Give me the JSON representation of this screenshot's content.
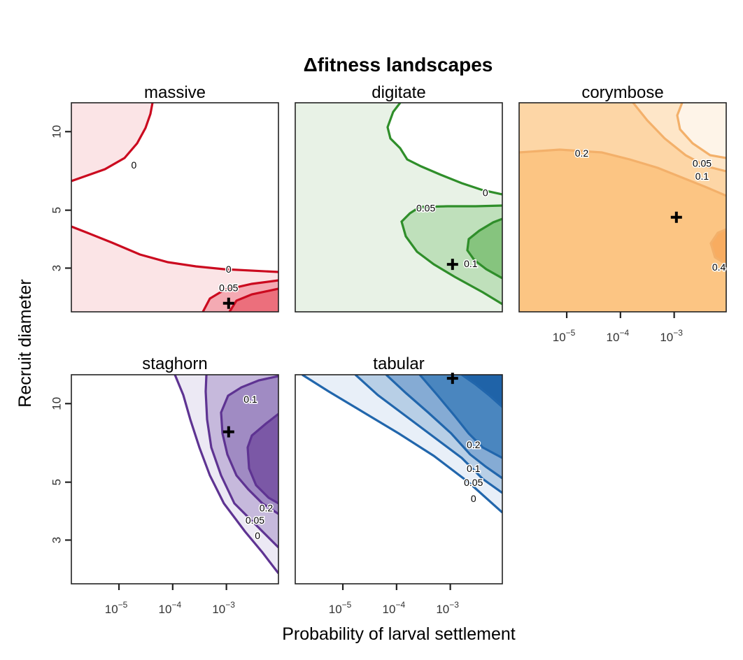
{
  "chart_data": {
    "type": "contour",
    "title": "Δfitness landscapes",
    "xlabel": "Probability of larval settlement",
    "ylabel": "Recruit diameter",
    "xscale": "log",
    "yscale": "log",
    "xticks": [
      {
        "value": 1e-05,
        "label": "10",
        "exp": "−5"
      },
      {
        "value": 0.0001,
        "label": "10",
        "exp": "−4"
      },
      {
        "value": 0.001,
        "label": "10",
        "exp": "−3"
      }
    ],
    "yticks": [
      3,
      5,
      10
    ],
    "panels": [
      {
        "name": "massive",
        "color": "#cb0a1f",
        "fills": [
          "#fbe4e6",
          "#ffffff",
          "#f4aab3",
          "#ec6f7c"
        ],
        "contour_levels": [
          0,
          0.05
        ],
        "marker": {
          "x": 0.0011,
          "y": 2.2
        },
        "labels": [
          {
            "text": "0",
            "x": 1.9e-05,
            "y": 7.4
          },
          {
            "text": "0",
            "x": 0.0011,
            "y": 2.95
          },
          {
            "text": "0.05",
            "x": 0.0011,
            "y": 2.5
          }
        ]
      },
      {
        "name": "digitate",
        "color": "#2f8e2a",
        "fills": [
          "#ffffff",
          "#e8f2e6",
          "#bfe0bb",
          "#86c47e"
        ],
        "contour_levels": [
          0,
          0.05,
          0.1
        ],
        "marker": {
          "x": 0.0011,
          "y": 3.1
        },
        "labels": [
          {
            "text": "0",
            "x": 0.0045,
            "y": 5.8
          },
          {
            "text": "0.05",
            "x": 0.00035,
            "y": 5.05
          },
          {
            "text": "0.1",
            "x": 0.0024,
            "y": 3.1
          }
        ]
      },
      {
        "name": "corymbose",
        "color": "#f3b06a",
        "fills": [
          "#fcc583",
          "#fdd6a6",
          "#fee6c8",
          "#fef4e8",
          "#f8ac60"
        ],
        "contour_levels": [
          0.05,
          0.1,
          0.2,
          0.4
        ],
        "marker": {
          "x": 0.0011,
          "y": 4.7
        },
        "labels": [
          {
            "text": "0.2",
            "x": 1.9e-05,
            "y": 8.2
          },
          {
            "text": "0.05",
            "x": 0.0033,
            "y": 7.5
          },
          {
            "text": "0.1",
            "x": 0.0033,
            "y": 6.7
          },
          {
            "text": "0.4",
            "x": 0.0068,
            "y": 3.0
          }
        ]
      },
      {
        "name": "staghorn",
        "color": "#5e3392",
        "fills": [
          "#ffffff",
          "#ece9f4",
          "#c6b9dc",
          "#a08bc3",
          "#7b58a6"
        ],
        "contour_levels": [
          0,
          0.05,
          0.1,
          0.2
        ],
        "marker": {
          "x": 0.0011,
          "y": 7.8
        },
        "labels": [
          {
            "text": "0.1",
            "x": 0.0028,
            "y": 10.3
          },
          {
            "text": "0.2",
            "x": 0.0055,
            "y": 3.95
          },
          {
            "text": "0.05",
            "x": 0.0034,
            "y": 3.55
          },
          {
            "text": "0",
            "x": 0.0038,
            "y": 3.1
          }
        ]
      },
      {
        "name": "tabular",
        "color": "#2166ac",
        "fills": [
          "#ffffff",
          "#e8eff8",
          "#b8cfe6",
          "#85abd4",
          "#4a86bf",
          "#1f63a8"
        ],
        "contour_levels": [
          0,
          0.05,
          0.1,
          0.2,
          0.4
        ],
        "marker": {
          "x": 0.0011,
          "y": 12.5
        },
        "labels": [
          {
            "text": "0.2",
            "x": 0.0027,
            "y": 6.9
          },
          {
            "text": "0.1",
            "x": 0.0027,
            "y": 5.6
          },
          {
            "text": "0.05",
            "x": 0.0027,
            "y": 4.95
          },
          {
            "text": "0",
            "x": 0.0027,
            "y": 4.3
          }
        ]
      }
    ]
  }
}
